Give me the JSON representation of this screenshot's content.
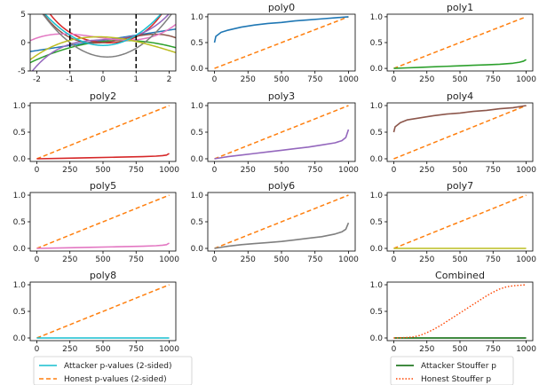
{
  "colors": {
    "honest": "#ff7f0e",
    "attacker_legend": "#17becf",
    "poly0": "#1f77b4",
    "poly1": "#2ca02c",
    "poly2": "#d62728",
    "poly3": "#9467bd",
    "poly4": "#8c564b",
    "poly5": "#e377c2",
    "poly6": "#7f7f7f",
    "poly7": "#bcbd22",
    "poly8": "#17becf",
    "combined_attacker": "#006400",
    "combined_honest": "#ff4500"
  },
  "legends": {
    "left": [
      {
        "label": "Attacker p-values (2-sided)",
        "style": "solid",
        "color": "#17becf"
      },
      {
        "label": "Honest p-values (2-sided)",
        "style": "dashed",
        "color": "#ff7f0e"
      }
    ],
    "right": [
      {
        "label": "Attacker Stouffer p",
        "style": "solid",
        "color": "#006400"
      },
      {
        "label": "Honest Stouffer p",
        "style": "dotted",
        "color": "#ff4500"
      }
    ]
  },
  "chart_data": [
    {
      "id": "functions",
      "type": "line",
      "title": "",
      "xlim": [
        -2.2,
        2.2
      ],
      "ylim": [
        -5,
        5
      ],
      "xticks": [
        -2,
        -1,
        0,
        1,
        2
      ],
      "yticks": [
        -5,
        0,
        5
      ],
      "vlines": [
        -1,
        1
      ],
      "series": [
        {
          "color": "#1f77b4",
          "coeffs": [
            0.4,
            0.9
          ]
        },
        {
          "color": "#2ca02c",
          "coeffs": [
            0.2,
            0.6,
            -0.5
          ]
        },
        {
          "color": "#d62728",
          "coeffs": [
            0.0,
            -0.4,
            1.2,
            0.0,
            0.2
          ]
        },
        {
          "color": "#9467bd",
          "coeffs": [
            0.5,
            0.3,
            0.0,
            0.5
          ]
        },
        {
          "color": "#8c564b",
          "coeffs": [
            0.0,
            0.6,
            1.0,
            -0.5
          ]
        },
        {
          "color": "#e377c2",
          "coeffs": [
            0.8,
            -0.8,
            0.2,
            0.3
          ]
        },
        {
          "color": "#7f7f7f",
          "coeffs": [
            -2.5,
            -0.5,
            2.0
          ]
        },
        {
          "color": "#bcbd22",
          "coeffs": [
            1.0,
            -0.2,
            -0.7,
            0.1
          ]
        },
        {
          "color": "#17becf",
          "coeffs": [
            -0.5,
            0.0,
            1.8
          ]
        }
      ]
    },
    {
      "id": "poly0",
      "type": "line",
      "title": "poly0",
      "xlim": [
        -50,
        1050
      ],
      "ylim": [
        -0.05,
        1.05
      ],
      "xticks": [
        0,
        250,
        500,
        750,
        1000
      ],
      "yticks": [
        0.0,
        0.5,
        1.0
      ],
      "attacker": {
        "x": [
          0,
          10,
          50,
          100,
          200,
          300,
          400,
          500,
          600,
          700,
          800,
          900,
          1000
        ],
        "y": [
          0.5,
          0.62,
          0.7,
          0.74,
          0.8,
          0.84,
          0.87,
          0.89,
          0.92,
          0.94,
          0.96,
          0.98,
          1.0
        ]
      },
      "honest": {
        "x": [
          0,
          1000
        ],
        "y": [
          0.0,
          1.0
        ]
      }
    },
    {
      "id": "poly1",
      "type": "line",
      "title": "poly1",
      "xlim": [
        -50,
        1050
      ],
      "ylim": [
        -0.05,
        1.05
      ],
      "xticks": [
        0,
        250,
        500,
        750,
        1000
      ],
      "yticks": [
        0.0,
        0.5,
        1.0
      ],
      "attacker": {
        "x": [
          0,
          100,
          200,
          300,
          400,
          500,
          600,
          700,
          800,
          900,
          950,
          980,
          1000
        ],
        "y": [
          0.0,
          0.01,
          0.02,
          0.03,
          0.04,
          0.05,
          0.06,
          0.07,
          0.08,
          0.1,
          0.12,
          0.14,
          0.17
        ]
      },
      "honest": {
        "x": [
          0,
          1000
        ],
        "y": [
          0.0,
          1.0
        ]
      }
    },
    {
      "id": "poly2",
      "type": "line",
      "title": "poly2",
      "xlim": [
        -50,
        1050
      ],
      "ylim": [
        -0.05,
        1.05
      ],
      "xticks": [
        0,
        250,
        500,
        750,
        1000
      ],
      "yticks": [
        0.0,
        0.5,
        1.0
      ],
      "attacker": {
        "x": [
          0,
          200,
          400,
          600,
          800,
          900,
          950,
          980,
          1000
        ],
        "y": [
          0.0,
          0.01,
          0.02,
          0.03,
          0.04,
          0.05,
          0.06,
          0.07,
          0.1
        ]
      },
      "honest": {
        "x": [
          0,
          1000
        ],
        "y": [
          0.0,
          1.0
        ]
      }
    },
    {
      "id": "poly3",
      "type": "line",
      "title": "poly3",
      "xlim": [
        -50,
        1050
      ],
      "ylim": [
        -0.05,
        1.05
      ],
      "xticks": [
        0,
        250,
        500,
        750,
        1000
      ],
      "yticks": [
        0.0,
        0.5,
        1.0
      ],
      "attacker": {
        "x": [
          0,
          100,
          200,
          300,
          400,
          500,
          600,
          700,
          800,
          900,
          950,
          980,
          1000
        ],
        "y": [
          0.0,
          0.04,
          0.07,
          0.1,
          0.13,
          0.16,
          0.19,
          0.22,
          0.26,
          0.3,
          0.34,
          0.4,
          0.55
        ]
      },
      "honest": {
        "x": [
          0,
          1000
        ],
        "y": [
          0.0,
          1.0
        ]
      }
    },
    {
      "id": "poly4",
      "type": "line",
      "title": "poly4",
      "xlim": [
        -50,
        1050
      ],
      "ylim": [
        -0.05,
        1.05
      ],
      "xticks": [
        0,
        250,
        500,
        750,
        1000
      ],
      "yticks": [
        0.0,
        0.5,
        1.0
      ],
      "attacker": {
        "x": [
          0,
          10,
          50,
          100,
          200,
          300,
          400,
          500,
          600,
          700,
          800,
          900,
          1000
        ],
        "y": [
          0.5,
          0.6,
          0.68,
          0.73,
          0.77,
          0.81,
          0.84,
          0.86,
          0.89,
          0.91,
          0.94,
          0.96,
          1.0
        ]
      },
      "honest": {
        "x": [
          0,
          1000
        ],
        "y": [
          0.0,
          1.0
        ]
      }
    },
    {
      "id": "poly5",
      "type": "line",
      "title": "poly5",
      "xlim": [
        -50,
        1050
      ],
      "ylim": [
        -0.05,
        1.05
      ],
      "xticks": [
        0,
        250,
        500,
        750,
        1000
      ],
      "yticks": [
        0.0,
        0.5,
        1.0
      ],
      "attacker": {
        "x": [
          0,
          200,
          400,
          600,
          800,
          900,
          950,
          980,
          1000
        ],
        "y": [
          0.0,
          0.01,
          0.02,
          0.03,
          0.04,
          0.05,
          0.06,
          0.07,
          0.1
        ]
      },
      "honest": {
        "x": [
          0,
          1000
        ],
        "y": [
          0.0,
          1.0
        ]
      }
    },
    {
      "id": "poly6",
      "type": "line",
      "title": "poly6",
      "xlim": [
        -50,
        1050
      ],
      "ylim": [
        -0.05,
        1.05
      ],
      "xticks": [
        0,
        250,
        500,
        750,
        1000
      ],
      "yticks": [
        0.0,
        0.5,
        1.0
      ],
      "attacker": {
        "x": [
          0,
          100,
          200,
          300,
          400,
          500,
          600,
          700,
          800,
          900,
          950,
          980,
          1000
        ],
        "y": [
          0.0,
          0.04,
          0.07,
          0.09,
          0.11,
          0.13,
          0.16,
          0.19,
          0.22,
          0.27,
          0.31,
          0.36,
          0.48
        ]
      },
      "honest": {
        "x": [
          0,
          1000
        ],
        "y": [
          0.0,
          1.0
        ]
      }
    },
    {
      "id": "poly7",
      "type": "line",
      "title": "poly7",
      "xlim": [
        -50,
        1050
      ],
      "ylim": [
        -0.05,
        1.05
      ],
      "xticks": [
        0,
        250,
        500,
        750,
        1000
      ],
      "yticks": [
        0.0,
        0.5,
        1.0
      ],
      "attacker": {
        "x": [
          0,
          1000
        ],
        "y": [
          0.0,
          0.0
        ]
      },
      "honest": {
        "x": [
          0,
          1000
        ],
        "y": [
          0.0,
          1.0
        ]
      }
    },
    {
      "id": "poly8",
      "type": "line",
      "title": "poly8",
      "xlim": [
        -50,
        1050
      ],
      "ylim": [
        -0.05,
        1.05
      ],
      "xticks": [
        0,
        250,
        500,
        750,
        1000
      ],
      "yticks": [
        0.0,
        0.5,
        1.0
      ],
      "attacker": {
        "x": [
          0,
          1000
        ],
        "y": [
          0.0,
          0.0
        ]
      },
      "honest": {
        "x": [
          0,
          1000
        ],
        "y": [
          0.0,
          1.0
        ]
      }
    },
    {
      "id": "combined",
      "type": "line",
      "title": "Combined",
      "xlim": [
        -50,
        1050
      ],
      "ylim": [
        -0.05,
        1.05
      ],
      "xticks": [
        0,
        250,
        500,
        750,
        1000
      ],
      "yticks": [
        0.0,
        0.5,
        1.0
      ],
      "attacker": {
        "x": [
          0,
          1000
        ],
        "y": [
          0.0,
          0.0
        ]
      },
      "honest": {
        "x": [
          0,
          100,
          150,
          200,
          250,
          300,
          350,
          400,
          450,
          500,
          550,
          600,
          650,
          700,
          750,
          800,
          850,
          900,
          950,
          1000
        ],
        "y": [
          0.0,
          0.01,
          0.02,
          0.05,
          0.1,
          0.16,
          0.23,
          0.31,
          0.39,
          0.47,
          0.55,
          0.63,
          0.71,
          0.79,
          0.86,
          0.92,
          0.96,
          0.98,
          0.99,
          1.0
        ]
      }
    }
  ]
}
